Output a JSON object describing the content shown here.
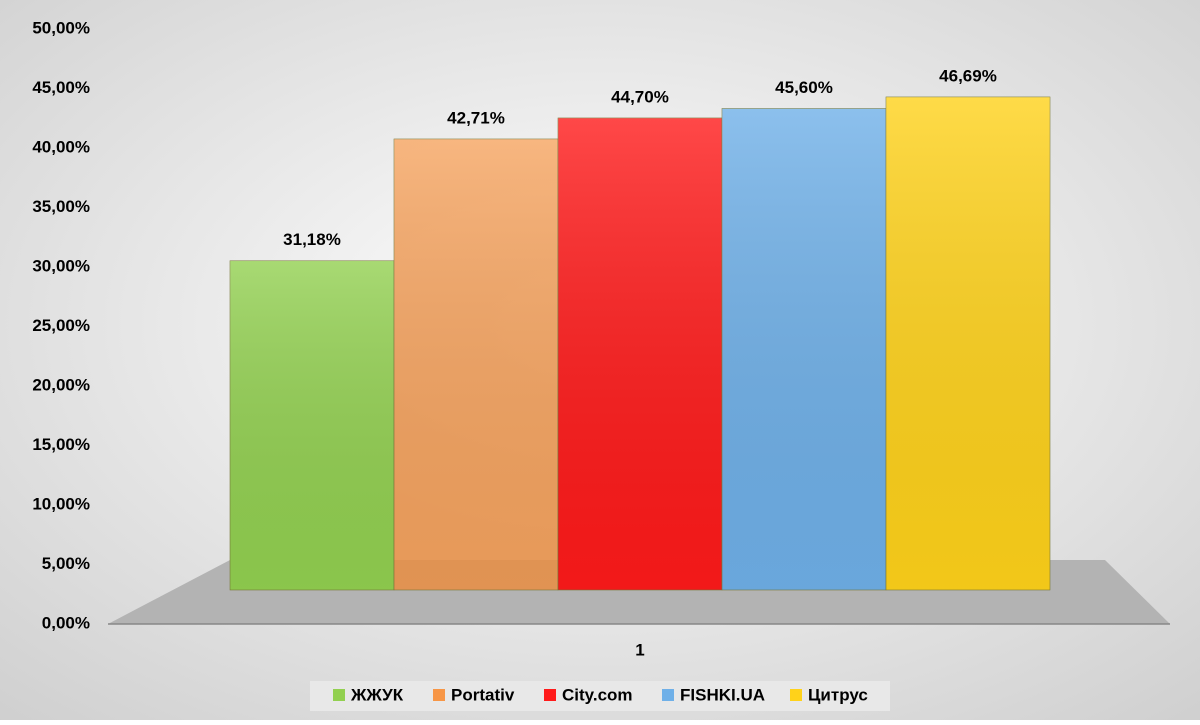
{
  "chart_data": {
    "type": "bar",
    "categories": [
      "1"
    ],
    "series": [
      {
        "name": "ЖЖУК",
        "color": "#92d050",
        "values": [
          31.18
        ],
        "value_labels": [
          "31,18%"
        ]
      },
      {
        "name": "Portativ",
        "color": "#f79646",
        "values": [
          42.71
        ],
        "value_labels": [
          "42,71%"
        ]
      },
      {
        "name": "City.com",
        "color": "#ff1a1a",
        "values": [
          44.7
        ],
        "value_labels": [
          "44,70%"
        ]
      },
      {
        "name": "FISHKI.UA",
        "color": "#6fb0e8",
        "values": [
          45.6
        ],
        "value_labels": [
          "45,60%"
        ]
      },
      {
        "name": "Цитрус",
        "color": "#ffd21a",
        "values": [
          46.69
        ],
        "value_labels": [
          "46,69%"
        ]
      }
    ],
    "ylim": [
      0,
      50
    ],
    "yticks": [
      {
        "value": 0,
        "label": "0,00%"
      },
      {
        "value": 5,
        "label": "5,00%"
      },
      {
        "value": 10,
        "label": "10,00%"
      },
      {
        "value": 15,
        "label": "15,00%"
      },
      {
        "value": 20,
        "label": "20,00%"
      },
      {
        "value": 25,
        "label": "25,00%"
      },
      {
        "value": 30,
        "label": "30,00%"
      },
      {
        "value": 35,
        "label": "35,00%"
      },
      {
        "value": 40,
        "label": "40,00%"
      },
      {
        "value": 45,
        "label": "45,00%"
      },
      {
        "value": 50,
        "label": "50,00%"
      }
    ],
    "legend": "bottom"
  }
}
